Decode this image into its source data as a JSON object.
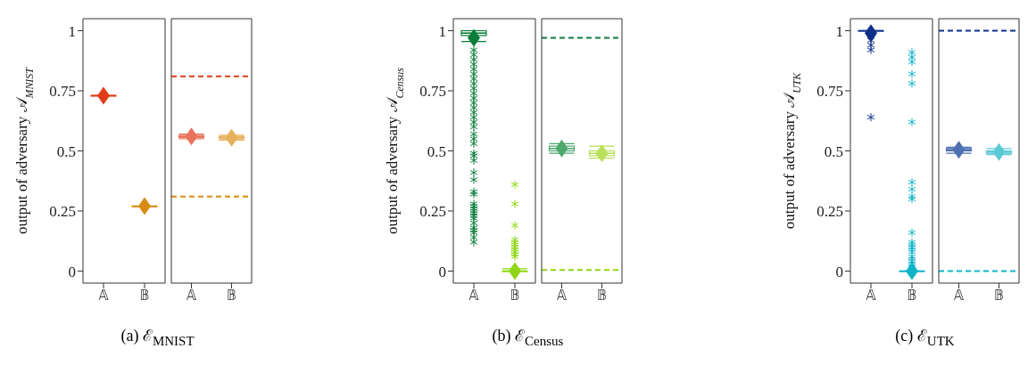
{
  "chart_data": [
    {
      "type": "box",
      "ylabel": "output of adversary 𝒜$_{MNIST}$",
      "categories": [
        "𝔸",
        "𝔹"
      ],
      "colors": [
        "#e03c1a",
        "#d98b10"
      ],
      "marker": "star",
      "ylim": [
        -0.05,
        1.05
      ],
      "yticks": [
        0,
        0.25,
        0.5,
        0.75,
        1
      ],
      "annotations": [
        "(a) ℰ$_{MNIST}$"
      ],
      "boxes": [
        {
          "low": 0.73,
          "q1": 0.73,
          "median": 0.73,
          "q3": 0.73,
          "high": 0.73,
          "mean": 0.73
        },
        {
          "low": 0.27,
          "q1": 0.27,
          "median": 0.27,
          "q3": 0.27,
          "high": 0.27,
          "mean": 0.27
        }
      ]
    },
    {
      "type": "box",
      "categories": [
        "𝔸",
        "𝔹"
      ],
      "colors": [
        "#e8735a",
        "#e6b05a"
      ],
      "marker": "star",
      "ylim": [
        -0.05,
        1.05
      ],
      "yticks": [
        0,
        0.25,
        0.5,
        0.75,
        1
      ],
      "tick_labels": "x",
      "ref_lines": [
        {
          "axis": "y",
          "value": 0.81,
          "color": "#e03c1a",
          "line_style": "dashed"
        },
        {
          "axis": "y",
          "value": 0.31,
          "color": "#d98b10",
          "line_style": "dashed"
        }
      ],
      "boxes": [
        {
          "low": 0.55,
          "q1": 0.555,
          "median": 0.56,
          "q3": 0.565,
          "high": 0.57,
          "mean": 0.56
        },
        {
          "low": 0.545,
          "q1": 0.55,
          "median": 0.555,
          "q3": 0.56,
          "high": 0.565,
          "mean": 0.555
        }
      ]
    },
    {
      "type": "box",
      "ylabel": "output of adversary 𝒜$_{Census}$",
      "categories": [
        "𝔸",
        "𝔹"
      ],
      "colors": [
        "#0a7d3a",
        "#8fd614"
      ],
      "marker": "star",
      "ylim": [
        -0.05,
        1.05
      ],
      "yticks": [
        0,
        0.25,
        0.5,
        0.75,
        1
      ],
      "annotations": [
        "(b) ℰ$_{Census}$"
      ],
      "boxes": [
        {
          "low": 0.955,
          "q1": 0.98,
          "median": 0.99,
          "q3": 1.0,
          "high": 1.0,
          "mean": 0.97,
          "outliers": [
            0.12,
            0.14,
            0.16,
            0.17,
            0.18,
            0.2,
            0.22,
            0.23,
            0.24,
            0.25,
            0.26,
            0.27,
            0.28,
            0.32,
            0.33,
            0.38,
            0.41,
            0.46,
            0.48,
            0.49,
            0.53,
            0.55,
            0.57,
            0.6,
            0.62,
            0.64,
            0.66,
            0.68,
            0.7,
            0.72,
            0.74,
            0.76,
            0.78,
            0.8,
            0.82,
            0.84,
            0.86,
            0.88,
            0.9,
            0.92
          ]
        },
        {
          "low": 0.0,
          "q1": 0.0,
          "median": 0.0,
          "q3": 0.0,
          "high": 0.01,
          "mean": 0.0,
          "outliers": [
            0.06,
            0.07,
            0.08,
            0.09,
            0.1,
            0.11,
            0.12,
            0.13,
            0.19,
            0.28,
            0.36
          ]
        }
      ]
    },
    {
      "type": "box",
      "categories": [
        "𝔸",
        "𝔹"
      ],
      "colors": [
        "#4ea86e",
        "#b8e05a"
      ],
      "marker": "star",
      "ylim": [
        -0.05,
        1.05
      ],
      "yticks": [
        0,
        0.25,
        0.5,
        0.75,
        1
      ],
      "tick_labels": "x",
      "ref_lines": [
        {
          "axis": "y",
          "value": 0.97,
          "color": "#0a7d3a",
          "line_style": "dashed"
        },
        {
          "axis": "y",
          "value": 0.005,
          "color": "#8fd614",
          "line_style": "dashed"
        }
      ],
      "boxes": [
        {
          "low": 0.49,
          "q1": 0.5,
          "median": 0.51,
          "q3": 0.52,
          "high": 0.53,
          "mean": 0.51
        },
        {
          "low": 0.47,
          "q1": 0.48,
          "median": 0.49,
          "q3": 0.5,
          "high": 0.52,
          "mean": 0.49
        }
      ]
    },
    {
      "type": "box",
      "ylabel": "output of adversary 𝒜$_{UTK}$",
      "categories": [
        "𝔸",
        "𝔹"
      ],
      "colors": [
        "#0d2f8a",
        "#10b4c8"
      ],
      "marker": "star",
      "ylim": [
        -0.05,
        1.05
      ],
      "yticks": [
        0,
        0.25,
        0.5,
        0.75,
        1
      ],
      "annotations": [
        "(c) ℰ$_{UTK}$"
      ],
      "boxes": [
        {
          "low": 1.0,
          "q1": 1.0,
          "median": 1.0,
          "q3": 1.0,
          "high": 1.0,
          "mean": 0.99,
          "outliers": [
            0.64,
            0.92,
            0.94,
            0.96,
            0.98
          ]
        },
        {
          "low": 0.0,
          "q1": 0.0,
          "median": 0.0,
          "q3": 0.0,
          "high": 0.0,
          "mean": 0.0,
          "outliers": [
            0.02,
            0.03,
            0.04,
            0.05,
            0.06,
            0.08,
            0.09,
            0.1,
            0.11,
            0.12,
            0.16,
            0.3,
            0.31,
            0.34,
            0.37,
            0.62,
            0.78,
            0.82,
            0.87,
            0.89,
            0.91
          ]
        }
      ]
    },
    {
      "type": "box",
      "categories": [
        "𝔸",
        "𝔹"
      ],
      "colors": [
        "#4f6fb3",
        "#5ccad6"
      ],
      "marker": "star",
      "ylim": [
        -0.05,
        1.05
      ],
      "yticks": [
        0,
        0.25,
        0.5,
        0.75,
        1
      ],
      "tick_labels": "x",
      "ref_lines": [
        {
          "axis": "y",
          "value": 1.0,
          "color": "#0d2f8a",
          "line_style": "dashed"
        },
        {
          "axis": "y",
          "value": 0.0,
          "color": "#10b4c8",
          "line_style": "dashed"
        }
      ],
      "boxes": [
        {
          "low": 0.49,
          "q1": 0.5,
          "median": 0.505,
          "q3": 0.51,
          "high": 0.515,
          "mean": 0.505
        },
        {
          "low": 0.485,
          "q1": 0.49,
          "median": 0.495,
          "q3": 0.5,
          "high": 0.51,
          "mean": 0.495
        }
      ]
    }
  ]
}
